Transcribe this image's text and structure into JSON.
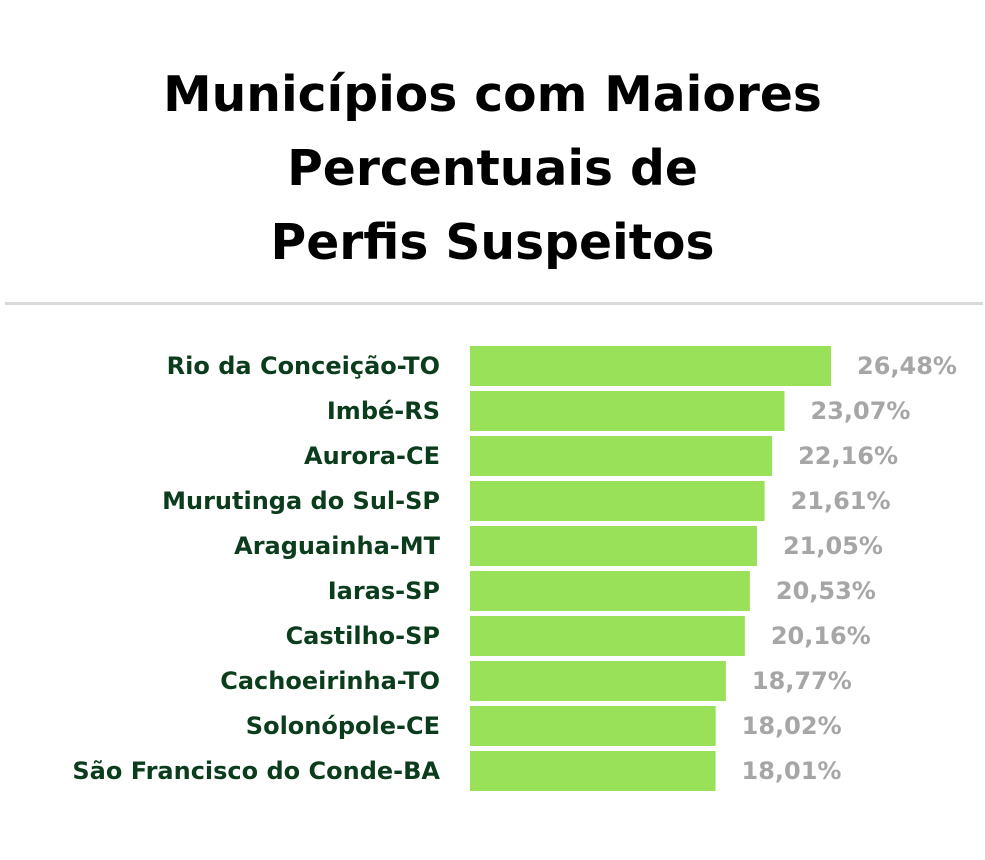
{
  "title_lines": [
    "Municípios com Maiores",
    "Percentuais de",
    "Perfis Suspeitos"
  ],
  "colors": {
    "bar": "#98e159",
    "category_label": "#0b3d1c",
    "value_label": "#a6a6a6",
    "divider": "#d9d9d9"
  },
  "chart_data": {
    "type": "bar",
    "orientation": "horizontal",
    "title": "Municípios com Maiores Percentuais de Perfis Suspeitos",
    "categories": [
      "Rio da Conceição-TO",
      "Imbé-RS",
      "Aurora-CE",
      "Murutinga do Sul-SP",
      "Araguainha-MT",
      "Iaras-SP",
      "Castilho-SP",
      "Cachoeirinha-TO",
      "Solonópole-CE",
      "São Francisco do Conde-BA"
    ],
    "values": [
      26.48,
      23.07,
      22.16,
      21.61,
      21.05,
      20.53,
      20.16,
      18.77,
      18.02,
      18.01
    ],
    "value_labels": [
      "26,48%",
      "23,07%",
      "22,16%",
      "21,61%",
      "21,05%",
      "20,53%",
      "20,16%",
      "18,77%",
      "18,02%",
      "18,01%"
    ],
    "unit": "%",
    "grid": false,
    "legend": "none"
  }
}
